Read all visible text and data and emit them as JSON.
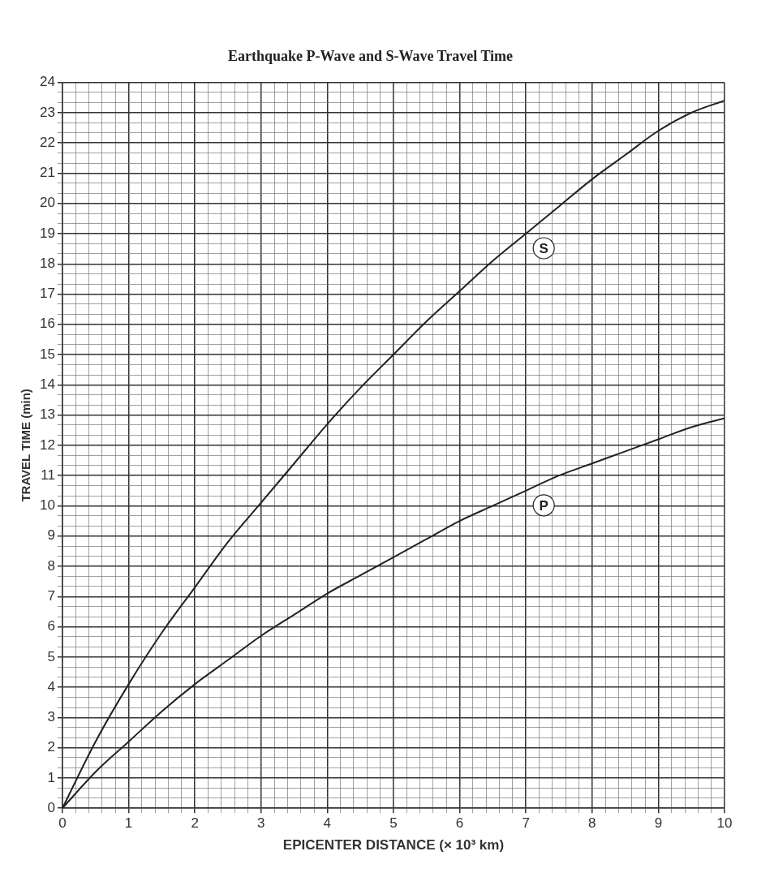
{
  "chart_data": {
    "type": "line",
    "title": "Earthquake P-Wave and S-Wave Travel Time",
    "xlabel": "EPICENTER DISTANCE (× 10³ km)",
    "ylabel": "TRAVEL TIME (min)",
    "x": [
      0,
      0.5,
      1,
      1.5,
      2,
      2.5,
      3,
      3.5,
      4,
      4.5,
      5,
      5.5,
      6,
      6.5,
      7,
      7.5,
      8,
      8.5,
      9,
      9.5,
      10
    ],
    "series": [
      {
        "name": "S",
        "color": "#222222",
        "values": [
          0,
          2.2,
          4.1,
          5.8,
          7.3,
          8.8,
          10.1,
          11.4,
          12.7,
          13.9,
          15.0,
          16.1,
          17.1,
          18.1,
          19.0,
          19.9,
          20.8,
          21.6,
          22.4,
          23.0,
          23.4
        ]
      },
      {
        "name": "P",
        "color": "#222222",
        "values": [
          0,
          1.2,
          2.2,
          3.2,
          4.1,
          4.9,
          5.7,
          6.4,
          7.1,
          7.7,
          8.3,
          8.9,
          9.5,
          10.0,
          10.5,
          11.0,
          11.4,
          11.8,
          12.2,
          12.6,
          12.9
        ]
      }
    ],
    "xlim": [
      0,
      10
    ],
    "ylim": [
      0,
      24
    ],
    "xticks": [
      0,
      {
        "value": 0.2,
        "label": null
      },
      {
        "value": 0.4,
        "label": null
      },
      {
        "value": 0.6,
        "label": null
      },
      {
        "value": 0.8,
        "label": null
      },
      1,
      {
        "value": 1.2,
        "label": null
      },
      {
        "value": 1.4,
        "label": null
      },
      {
        "value": 1.6,
        "label": null
      },
      {
        "value": 1.8,
        "label": null
      },
      2,
      {
        "value": 2.2,
        "label": null
      },
      {
        "value": 2.4,
        "label": null
      },
      {
        "value": 2.6,
        "label": null
      },
      {
        "value": 2.8,
        "label": null
      },
      3,
      {
        "value": 3.2,
        "label": null
      },
      {
        "value": 3.4,
        "label": null
      },
      {
        "value": 3.6,
        "label": null
      },
      {
        "value": 3.8,
        "label": null
      },
      4,
      {
        "value": 4.2,
        "label": null
      },
      {
        "value": 4.4,
        "label": null
      },
      {
        "value": 4.6,
        "label": null
      },
      {
        "value": 4.8,
        "label": null
      },
      5,
      {
        "value": 5.2,
        "label": null
      },
      {
        "value": 5.4,
        "label": null
      },
      {
        "value": 5.6,
        "label": null
      },
      {
        "value": 5.8,
        "label": null
      },
      6,
      {
        "value": 6.2,
        "label": null
      },
      {
        "value": 6.4,
        "label": null
      },
      {
        "value": 6.6,
        "label": null
      },
      {
        "value": 6.8,
        "label": null
      },
      7,
      {
        "value": 7.2,
        "label": null
      },
      {
        "value": 7.4,
        "label": null
      },
      {
        "value": 7.6,
        "label": null
      },
      {
        "value": 7.8,
        "label": null
      },
      8,
      {
        "value": 8.2,
        "label": null
      },
      {
        "value": 8.4,
        "label": null
      },
      {
        "value": 8.6,
        "label": null
      },
      {
        "value": 8.8,
        "label": null
      },
      9,
      {
        "value": 9.2,
        "label": null
      },
      {
        "value": 9.4,
        "label": null
      },
      {
        "value": 9.6,
        "label": null
      },
      {
        "value": 9.8,
        "label": null
      },
      10
    ],
    "yticks": [
      0,
      {
        "value": 0.33,
        "label": null
      },
      {
        "value": 0.67,
        "label": null
      },
      1,
      {
        "value": 1.33,
        "label": null
      },
      {
        "value": 1.67,
        "label": null
      },
      2,
      {
        "value": 2.33,
        "label": null
      },
      {
        "value": 2.67,
        "label": null
      },
      3,
      {
        "value": 3.33,
        "label": null
      },
      {
        "value": 3.67,
        "label": null
      },
      4,
      {
        "value": 4.33,
        "label": null
      },
      {
        "value": 4.67,
        "label": null
      },
      5,
      {
        "value": 5.33,
        "label": null
      },
      {
        "value": 5.67,
        "label": null
      },
      6,
      {
        "value": 6.33,
        "label": null
      },
      {
        "value": 6.67,
        "label": null
      },
      7,
      {
        "value": 7.33,
        "label": null
      },
      {
        "value": 7.67,
        "label": null
      },
      8,
      {
        "value": 8.33,
        "label": null
      },
      {
        "value": 8.67,
        "label": null
      },
      9,
      {
        "value": 9.33,
        "label": null
      },
      {
        "value": 9.67,
        "label": null
      },
      10,
      {
        "value": 10.33,
        "label": null
      },
      {
        "value": 10.67,
        "label": null
      },
      11,
      {
        "value": 11.33,
        "label": null
      },
      {
        "value": 11.67,
        "label": null
      },
      12,
      {
        "value": 12.33,
        "label": null
      },
      {
        "value": 12.67,
        "label": null
      },
      13,
      {
        "value": 13.33,
        "label": null
      },
      {
        "value": 13.67,
        "label": null
      },
      14,
      {
        "value": 14.33,
        "label": null
      },
      {
        "value": 14.67,
        "label": null
      },
      15,
      {
        "value": 15.33,
        "label": null
      },
      {
        "value": 15.67,
        "label": null
      },
      16,
      {
        "value": 16.33,
        "label": null
      },
      {
        "value": 16.67,
        "label": null
      },
      17,
      {
        "value": 17.33,
        "label": null
      },
      {
        "value": 17.67,
        "label": null
      },
      18,
      {
        "value": 18.33,
        "label": null
      },
      {
        "value": 18.67,
        "label": null
      },
      19,
      {
        "value": 19.33,
        "label": null
      },
      {
        "value": 19.67,
        "label": null
      },
      20,
      {
        "value": 20.33,
        "label": null
      },
      {
        "value": 20.67,
        "label": null
      },
      21,
      {
        "value": 21.33,
        "label": null
      },
      {
        "value": 21.67,
        "label": null
      },
      22,
      {
        "value": 22.33,
        "label": null
      },
      {
        "value": 22.67,
        "label": null
      },
      23,
      {
        "value": 23.33,
        "label": null
      },
      {
        "value": 23.67,
        "label": null
      },
      24
    ],
    "grid": true
  }
}
